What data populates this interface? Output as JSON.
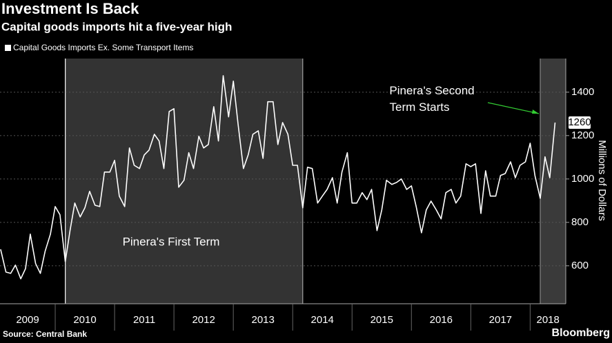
{
  "chart_data": {
    "type": "line",
    "title": "Investment Is Back",
    "subtitle": "Capital goods imports hit a five-year high",
    "y_label": "Millions of Dollars",
    "source": "Source: Central Bank",
    "brand": "Bloomberg",
    "legend_position": "top-left",
    "grid": true,
    "xlim": [
      2009.07,
      2018.6
    ],
    "xticks": [
      2009,
      2010,
      2011,
      2012,
      2013,
      2014,
      2015,
      2016,
      2017,
      2018
    ],
    "ylim": [
      425,
      1555
    ],
    "yticks": [
      600,
      800,
      1000,
      1200,
      1400
    ],
    "shaded_regions": [
      {
        "label": "Pinera's First Term",
        "xlim": [
          2010.17,
          2014.17
        ],
        "color": "#333333"
      },
      {
        "label": "Pinera's Second Term Starts",
        "xlim": [
          2018.17,
          2018.6
        ],
        "color": "#3a3a3a"
      }
    ],
    "x": [
      2009.08,
      2009.17,
      2009.25,
      2009.33,
      2009.42,
      2009.5,
      2009.58,
      2009.67,
      2009.75,
      2009.83,
      2009.92,
      2010,
      2010.08,
      2010.17,
      2010.25,
      2010.33,
      2010.42,
      2010.5,
      2010.58,
      2010.67,
      2010.75,
      2010.83,
      2010.92,
      2011,
      2011.08,
      2011.17,
      2011.25,
      2011.33,
      2011.42,
      2011.5,
      2011.58,
      2011.67,
      2011.75,
      2011.83,
      2011.92,
      2012,
      2012.08,
      2012.17,
      2012.25,
      2012.33,
      2012.42,
      2012.5,
      2012.58,
      2012.67,
      2012.75,
      2012.83,
      2012.92,
      2013,
      2013.08,
      2013.17,
      2013.25,
      2013.33,
      2013.42,
      2013.5,
      2013.58,
      2013.67,
      2013.75,
      2013.83,
      2013.92,
      2014,
      2014.08,
      2014.17,
      2014.25,
      2014.33,
      2014.42,
      2014.5,
      2014.58,
      2014.67,
      2014.75,
      2014.83,
      2014.92,
      2015,
      2015.08,
      2015.17,
      2015.25,
      2015.33,
      2015.42,
      2015.5,
      2015.58,
      2015.67,
      2015.75,
      2015.83,
      2015.92,
      2016,
      2016.08,
      2016.17,
      2016.25,
      2016.33,
      2016.42,
      2016.5,
      2016.58,
      2016.67,
      2016.75,
      2016.83,
      2016.92,
      2017,
      2017.08,
      2017.17,
      2017.25,
      2017.33,
      2017.42,
      2017.5,
      2017.58,
      2017.67,
      2017.75,
      2017.83,
      2017.92,
      2018,
      2018.08,
      2018.17,
      2018.25,
      2018.33,
      2018.42
    ],
    "series": [
      {
        "name": "Capital Goods Imports Ex. Some Transport Items",
        "color": "#ffffff",
        "values": [
          676,
          571,
          565,
          603,
          540,
          587,
          746,
          610,
          565,
          667,
          746,
          873,
          835,
          619,
          762,
          889,
          825,
          867,
          943,
          879,
          873,
          1032,
          1032,
          1086,
          921,
          873,
          1143,
          1063,
          1048,
          1111,
          1133,
          1206,
          1175,
          1048,
          1311,
          1324,
          962,
          994,
          1121,
          1048,
          1197,
          1143,
          1159,
          1333,
          1175,
          1476,
          1286,
          1451,
          1254,
          1048,
          1111,
          1206,
          1222,
          1095,
          1356,
          1356,
          1159,
          1260,
          1206,
          1063,
          1063,
          867,
          1054,
          1048,
          889,
          921,
          952,
          1006,
          889,
          1032,
          1121,
          889,
          889,
          937,
          905,
          952,
          762,
          857,
          994,
          975,
          984,
          1000,
          952,
          968,
          873,
          752,
          857,
          898,
          857,
          816,
          937,
          952,
          889,
          921,
          1070,
          1057,
          1070,
          841,
          1038,
          921,
          921,
          1016,
          1025,
          1079,
          1006,
          1063,
          1079,
          1165,
          1016,
          911,
          1102,
          1006,
          1260
        ]
      }
    ]
  }
}
